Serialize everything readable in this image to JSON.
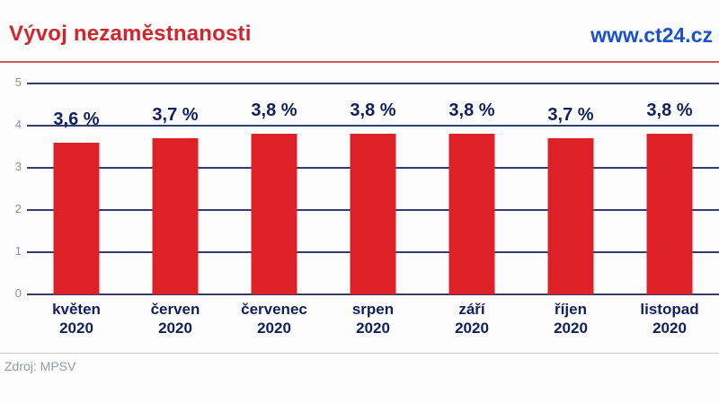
{
  "header": {
    "title": "Vývoj nezaměstnanosti",
    "url": "www.ct24.cz"
  },
  "source": "Zdroj: MPSV",
  "colors": {
    "title": "#d5232b",
    "url": "#1950cf",
    "bar": "#dd2127",
    "gridline": "#323c6e",
    "value_label": "#101f5e",
    "axis_tick": "#8f90a4",
    "red_rule": "#d15a5a",
    "grey_rule": "#c9c9d4"
  },
  "chart_data": {
    "type": "bar",
    "title": "Vývoj nezaměstnanosti",
    "xlabel": "",
    "ylabel": "",
    "categories": [
      {
        "month": "květen",
        "year": "2020"
      },
      {
        "month": "červen",
        "year": "2020"
      },
      {
        "month": "červenec",
        "year": "2020"
      },
      {
        "month": "srpen",
        "year": "2020"
      },
      {
        "month": "září",
        "year": "2020"
      },
      {
        "month": "říjen",
        "year": "2020"
      },
      {
        "month": "listopad",
        "year": "2020"
      }
    ],
    "values": [
      3.6,
      3.7,
      3.8,
      3.8,
      3.8,
      3.7,
      3.8
    ],
    "value_labels": [
      "3,6 %",
      "3,7 %",
      "3,8 %",
      "3,8 %",
      "3,8 %",
      "3,7 %",
      "3,8 %"
    ],
    "yticks": [
      0,
      1,
      2,
      3,
      4,
      5
    ],
    "ylim": [
      0,
      5
    ],
    "grid": true,
    "legend": false
  }
}
